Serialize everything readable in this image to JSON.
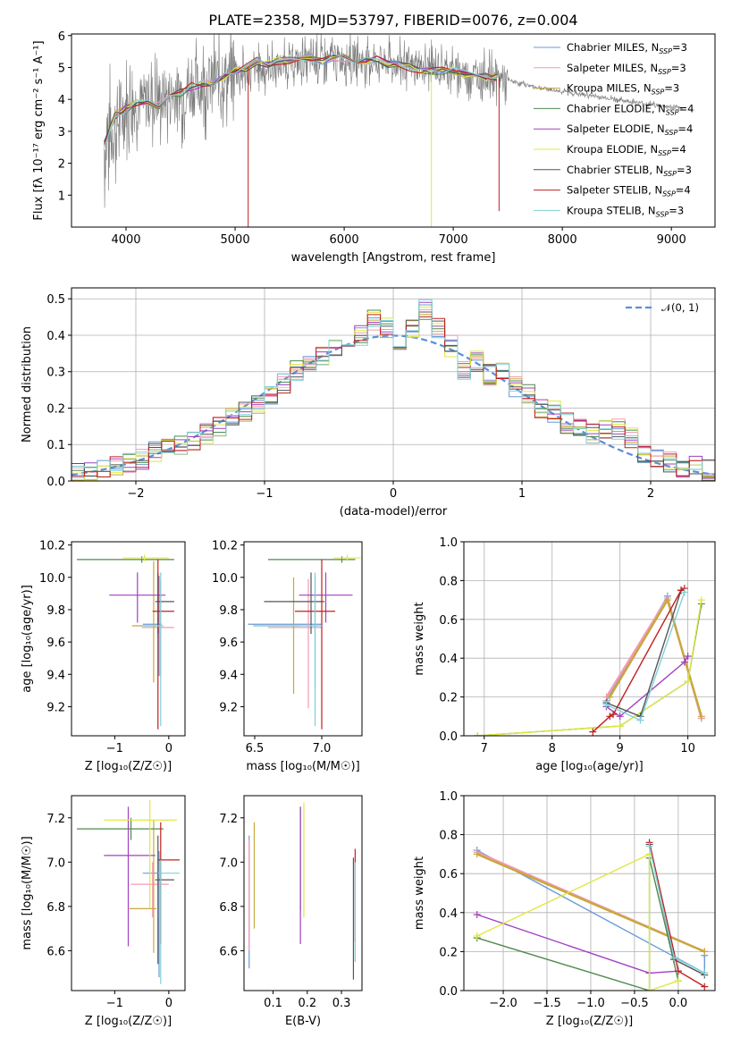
{
  "title": "PLATE=2358, MJD=53797, FIBERID=0076, z=0.004",
  "colors": [
    "#6a9bd8",
    "#f59ab5",
    "#c8a83c",
    "#4f8a4f",
    "#a040c0",
    "#e0e840",
    "#555555",
    "#c02020",
    "#80d0d8"
  ],
  "legend_entries": [
    "Chabrier MILES, N_SSP=3",
    "Salpeter MILES, N_SSP=3",
    "Kroupa MILES, N_SSP=3",
    "Chabrier ELODIE, N_SSP=4",
    "Salpeter ELODIE, N_SSP=4",
    "Kroupa ELODIE, N_SSP=4",
    "Chabrier STELIB, N_SSP=3",
    "Salpeter STELIB, N_SSP=4",
    "Kroupa STELIB, N_SSP=3"
  ],
  "legend_mathlabel": "𝒩(0, 1)",
  "chart_data": [
    {
      "id": "spectrum",
      "type": "line",
      "xlabel": "wavelength [Angstrom, rest frame]",
      "ylabel": "Flux [fλ 10⁻¹⁷ erg cm⁻² s⁻¹ A⁻¹]",
      "xlim": [
        3500,
        9400
      ],
      "ylim": [
        0,
        6.05
      ],
      "xticks": [
        4000,
        5000,
        6000,
        7000,
        8000,
        9000
      ],
      "yticks": [
        1,
        2,
        3,
        4,
        5,
        6
      ],
      "grid": false,
      "legend": "top-right",
      "data_x": [
        3800,
        3900,
        4000,
        4100,
        4200,
        4300,
        4400,
        4500,
        4600,
        4700,
        4800,
        4900,
        5000,
        5100,
        5200,
        5300,
        5400,
        5500,
        5600,
        5700,
        5800,
        5900,
        6000,
        6100,
        6200,
        6300,
        6400,
        6500,
        6600,
        6700,
        6800,
        6900,
        7000,
        7100,
        7200,
        7300,
        7400
      ],
      "data_y": [
        2.6,
        3.5,
        3.7,
        3.9,
        3.9,
        3.8,
        4.2,
        4.2,
        4.4,
        4.5,
        4.5,
        4.7,
        4.9,
        5.0,
        5.2,
        5.1,
        5.2,
        5.2,
        5.3,
        5.3,
        5.2,
        5.3,
        5.3,
        5.2,
        5.2,
        5.3,
        5.1,
        5.1,
        5.0,
        4.9,
        4.9,
        4.9,
        4.9,
        4.8,
        4.7,
        4.7,
        4.7
      ],
      "obs_x": [
        3800,
        4000,
        4500,
        5000,
        5500,
        6000,
        6500,
        7000,
        7500,
        7800,
        8000,
        8500,
        9000,
        9100
      ],
      "obs_y": [
        2.5,
        3.8,
        4.2,
        4.8,
        5.1,
        5.3,
        5.1,
        4.9,
        4.6,
        4.35,
        4.25,
        4.0,
        3.75,
        3.7
      ]
    },
    {
      "id": "residuals",
      "type": "line",
      "xlabel": "(data-model)/error",
      "ylabel": "Normed distribution",
      "xlim": [
        -2.5,
        2.5
      ],
      "ylim": [
        0,
        0.53
      ],
      "xticks": [
        -2,
        -1,
        0,
        1,
        2
      ],
      "yticks": [
        0.0,
        0.1,
        0.2,
        0.3,
        0.4,
        0.5
      ],
      "grid": true,
      "legend": "top-right",
      "bins": [
        -2.5,
        -2.4,
        -2.3,
        -2.2,
        -2.1,
        -2.0,
        -1.9,
        -1.8,
        -1.7,
        -1.6,
        -1.5,
        -1.4,
        -1.3,
        -1.2,
        -1.1,
        -1.0,
        -0.9,
        -0.8,
        -0.7,
        -0.6,
        -0.5,
        -0.4,
        -0.3,
        -0.2,
        -0.1,
        0.0,
        0.1,
        0.2,
        0.3,
        0.4,
        0.5,
        0.6,
        0.7,
        0.8,
        0.9,
        1.0,
        1.1,
        1.2,
        1.3,
        1.4,
        1.5,
        1.6,
        1.7,
        1.8,
        1.9,
        2.0,
        2.1,
        2.2,
        2.3,
        2.4
      ],
      "hist": [
        0.02,
        0.02,
        0.03,
        0.04,
        0.05,
        0.06,
        0.08,
        0.09,
        0.1,
        0.11,
        0.13,
        0.15,
        0.17,
        0.19,
        0.21,
        0.24,
        0.27,
        0.3,
        0.32,
        0.34,
        0.36,
        0.38,
        0.4,
        0.44,
        0.42,
        0.37,
        0.42,
        0.47,
        0.42,
        0.37,
        0.3,
        0.33,
        0.29,
        0.3,
        0.26,
        0.24,
        0.2,
        0.19,
        0.16,
        0.15,
        0.13,
        0.14,
        0.14,
        0.12,
        0.07,
        0.06,
        0.05,
        0.04,
        0.04,
        0.03
      ]
    },
    {
      "id": "z-age",
      "type": "scatter",
      "xlabel": "Z [log₁₀(Z/Z☉)]",
      "ylabel": "age  [log₁₀(age/yr)]",
      "xlim": [
        -1.8,
        0.3
      ],
      "ylim": [
        9.02,
        10.22
      ],
      "xticks": [
        -1,
        0
      ],
      "yticks": [
        9.2,
        9.4,
        9.6,
        9.8,
        10.0,
        10.2
      ],
      "points": [
        {
          "x": -0.18,
          "y": 9.71,
          "xerr": [
            0.3,
            0.05
          ],
          "yerr": [
            0.32,
            0.3
          ]
        },
        {
          "x": -0.15,
          "y": 9.69,
          "xerr": [
            0.35,
            0.25
          ],
          "yerr": [
            0.3,
            0.29
          ]
        },
        {
          "x": -0.28,
          "y": 9.7,
          "xerr": [
            0.4,
            0.05
          ],
          "yerr": [
            0.35,
            0.4
          ]
        },
        {
          "x": -0.5,
          "y": 10.11,
          "xerr": [
            1.2,
            0.6
          ],
          "yerr": [
            0.02,
            0.02
          ]
        },
        {
          "x": -0.58,
          "y": 9.89,
          "xerr": [
            0.52,
            0.52
          ],
          "yerr": [
            0.17,
            0.14
          ]
        },
        {
          "x": -0.45,
          "y": 10.12,
          "xerr": [
            0.4,
            0.45
          ],
          "yerr": [
            0.02,
            0.02
          ]
        },
        {
          "x": -0.2,
          "y": 9.85,
          "xerr": [
            0.05,
            0.3
          ],
          "yerr": [
            0.2,
            0.18
          ]
        },
        {
          "x": -0.2,
          "y": 9.79,
          "xerr": [
            0.1,
            0.3
          ],
          "yerr": [
            0.73,
            0.32
          ]
        },
        {
          "x": -0.15,
          "y": 9.7,
          "xerr": [
            0.35,
            0.05
          ],
          "yerr": [
            0.62,
            0.33
          ]
        }
      ]
    },
    {
      "id": "mass-age",
      "type": "scatter",
      "xlabel": "mass [log₁₀(M/M☉)]",
      "ylabel": "",
      "xlim": [
        6.42,
        7.3
      ],
      "ylim": [
        9.02,
        10.22
      ],
      "xticks": [
        6.5,
        7.0
      ],
      "yticks": [
        9.2,
        9.4,
        9.6,
        9.8,
        10.0,
        10.2
      ],
      "points": [
        {
          "x": 6.95,
          "y": 9.71,
          "xerr": [
            0.5,
            0.05
          ],
          "yerr": [
            0.4,
            0.3
          ]
        },
        {
          "x": 6.9,
          "y": 9.69,
          "xerr": [
            0.3,
            0.1
          ],
          "yerr": [
            0.5,
            0.3
          ]
        },
        {
          "x": 6.79,
          "y": 9.7,
          "xerr": [
            0.3,
            0.05
          ],
          "yerr": [
            0.42,
            0.3
          ]
        },
        {
          "x": 7.15,
          "y": 10.11,
          "xerr": [
            0.55,
            0.1
          ],
          "yerr": [
            0.02,
            0.02
          ]
        },
        {
          "x": 7.03,
          "y": 9.89,
          "xerr": [
            0.2,
            0.2
          ],
          "yerr": [
            0.17,
            0.14
          ]
        },
        {
          "x": 7.19,
          "y": 10.12,
          "xerr": [
            0.1,
            0.1
          ],
          "yerr": [
            0.02,
            0.02
          ]
        },
        {
          "x": 6.92,
          "y": 9.85,
          "xerr": [
            0.35,
            0.1
          ],
          "yerr": [
            0.2,
            0.18
          ]
        },
        {
          "x": 7.0,
          "y": 9.79,
          "xerr": [
            0.2,
            0.1
          ],
          "yerr": [
            0.73,
            0.32
          ]
        },
        {
          "x": 6.95,
          "y": 9.7,
          "xerr": [
            0.45,
            0.05
          ],
          "yerr": [
            0.62,
            0.33
          ]
        }
      ]
    },
    {
      "id": "age-weight",
      "type": "line",
      "xlabel": "age  [log₁₀(age/yr)]",
      "ylabel": "mass weight",
      "xlim": [
        6.7,
        10.4
      ],
      "ylim": [
        0,
        1.0
      ],
      "xticks": [
        7,
        8,
        9,
        10
      ],
      "yticks": [
        0.0,
        0.2,
        0.4,
        0.6,
        0.8,
        1.0
      ],
      "grid": true,
      "series": [
        {
          "x": [
            8.8,
            9.7,
            10.2
          ],
          "y": [
            0.18,
            0.72,
            0.09
          ]
        },
        {
          "x": [
            8.8,
            9.7,
            10.2
          ],
          "y": [
            0.2,
            0.71,
            0.09
          ]
        },
        {
          "x": [
            8.85,
            9.7,
            10.2
          ],
          "y": [
            0.2,
            0.7,
            0.1
          ]
        },
        {
          "x": [
            6.9,
            9.0,
            10.0,
            10.2
          ],
          "y": [
            0.0,
            0.05,
            0.28,
            0.68
          ]
        },
        {
          "x": [
            8.8,
            9.0,
            9.95,
            10.0
          ],
          "y": [
            0.15,
            0.1,
            0.38,
            0.41
          ]
        },
        {
          "x": [
            6.9,
            9.0,
            10.0,
            10.2
          ],
          "y": [
            0.0,
            0.05,
            0.28,
            0.7
          ]
        },
        {
          "x": [
            8.8,
            9.3,
            9.9
          ],
          "y": [
            0.17,
            0.1,
            0.75
          ]
        },
        {
          "x": [
            8.6,
            8.85,
            8.9,
            9.9,
            9.95
          ],
          "y": [
            0.02,
            0.1,
            0.11,
            0.75,
            0.76
          ]
        },
        {
          "x": [
            8.8,
            9.3,
            9.95
          ],
          "y": [
            0.16,
            0.08,
            0.74
          ]
        }
      ]
    },
    {
      "id": "z-mass",
      "type": "scatter",
      "xlabel": "Z [log₁₀(Z/Z☉)]",
      "ylabel": "mass [log₁₀(M/M☉)]",
      "xlim": [
        -1.8,
        0.3
      ],
      "ylim": [
        6.42,
        7.3
      ],
      "xticks": [
        -1,
        0
      ],
      "yticks": [
        6.6,
        6.8,
        7.0,
        7.2
      ],
      "points": [
        {
          "x": -0.18,
          "y": 6.95,
          "xerr": [
            0.3,
            0.05
          ],
          "yerr": [
            0.47,
            0.1
          ]
        },
        {
          "x": -0.3,
          "y": 6.9,
          "xerr": [
            0.4,
            0.3
          ],
          "yerr": [
            0.15,
            0.1
          ]
        },
        {
          "x": -0.28,
          "y": 6.79,
          "xerr": [
            0.45,
            0.05
          ],
          "yerr": [
            0.2,
            0.4
          ]
        },
        {
          "x": -0.7,
          "y": 7.15,
          "xerr": [
            1.0,
            0.6
          ],
          "yerr": [
            0.05,
            0.05
          ]
        },
        {
          "x": -0.75,
          "y": 7.03,
          "xerr": [
            0.45,
            0.5
          ],
          "yerr": [
            0.41,
            0.22
          ]
        },
        {
          "x": -0.35,
          "y": 7.19,
          "xerr": [
            0.85,
            0.5
          ],
          "yerr": [
            0.4,
            0.09
          ]
        },
        {
          "x": -0.2,
          "y": 6.92,
          "xerr": [
            0.05,
            0.3
          ],
          "yerr": [
            0.38,
            0.2
          ]
        },
        {
          "x": -0.15,
          "y": 7.01,
          "xerr": [
            0.05,
            0.35
          ],
          "yerr": [
            0.38,
            0.17
          ]
        },
        {
          "x": -0.15,
          "y": 6.95,
          "xerr": [
            0.05,
            0.35
          ],
          "yerr": [
            0.5,
            0.06
          ]
        }
      ]
    },
    {
      "id": "ebv-mass",
      "type": "scatter",
      "xlabel": "E(B-V)",
      "ylabel": "",
      "xlim": [
        0.015,
        0.36
      ],
      "ylim": [
        6.42,
        7.3
      ],
      "xticks": [
        0.1,
        0.2,
        0.3
      ],
      "yticks": [
        6.6,
        6.8,
        7.0,
        7.2
      ],
      "points": [
        {
          "x": 0.03,
          "y": 6.95,
          "xerr": [
            0,
            0
          ],
          "yerr": [
            0.43,
            0.17
          ]
        },
        {
          "x": 0.03,
          "y": 6.9,
          "xerr": [
            0,
            0
          ],
          "yerr": [
            0.3,
            0.2
          ]
        },
        {
          "x": 0.045,
          "y": 6.95,
          "xerr": [
            0,
            0
          ],
          "yerr": [
            0.25,
            0.23
          ]
        },
        {
          "x": 0.18,
          "y": 7.15,
          "xerr": [
            0,
            0
          ],
          "yerr": [
            0.37,
            0.1
          ]
        },
        {
          "x": 0.18,
          "y": 6.95,
          "xerr": [
            0,
            0
          ],
          "yerr": [
            0.32,
            0.3
          ]
        },
        {
          "x": 0.19,
          "y": 7.15,
          "xerr": [
            0,
            0
          ],
          "yerr": [
            0.4,
            0.12
          ]
        },
        {
          "x": 0.335,
          "y": 6.8,
          "xerr": [
            0,
            0
          ],
          "yerr": [
            0.33,
            0.22
          ]
        },
        {
          "x": 0.34,
          "y": 6.8,
          "xerr": [
            0,
            0
          ],
          "yerr": [
            0.16,
            0.26
          ]
        },
        {
          "x": 0.34,
          "y": 6.75,
          "xerr": [
            0,
            0
          ],
          "yerr": [
            0.2,
            0.25
          ]
        }
      ]
    },
    {
      "id": "z-weight",
      "type": "line",
      "xlabel": "Z [log₁₀(Z/Z☉)]",
      "ylabel": "mass weight",
      "xlim": [
        -2.45,
        0.42
      ],
      "ylim": [
        0,
        1.0
      ],
      "xticks": [
        -2.0,
        -1.5,
        -1.0,
        -0.5,
        0.0
      ],
      "yticks": [
        0.0,
        0.2,
        0.4,
        0.6,
        0.8,
        1.0
      ],
      "grid": true,
      "series": [
        {
          "x": [
            -2.3,
            0.3,
            0.3
          ],
          "y": [
            0.72,
            0.09,
            0.18
          ]
        },
        {
          "x": [
            -2.3,
            0.3
          ],
          "y": [
            0.71,
            0.2
          ]
        },
        {
          "x": [
            -2.3,
            0.3
          ],
          "y": [
            0.7,
            0.2
          ]
        },
        {
          "x": [
            -2.3,
            -0.33,
            -0.33,
            0.0
          ],
          "y": [
            0.27,
            0.0,
            0.68,
            0.05
          ]
        },
        {
          "x": [
            -2.3,
            -0.33,
            0.0
          ],
          "y": [
            0.39,
            0.09,
            0.1
          ]
        },
        {
          "x": [
            -2.3,
            -0.33,
            -0.33,
            0.0
          ],
          "y": [
            0.28,
            0.7,
            0.0,
            0.05
          ]
        },
        {
          "x": [
            -0.33,
            -0.05,
            0.3
          ],
          "y": [
            0.75,
            0.16,
            0.08
          ]
        },
        {
          "x": [
            -0.33,
            0.0,
            0.3
          ],
          "y": [
            0.76,
            0.1,
            0.02
          ]
        },
        {
          "x": [
            -0.33,
            -0.05,
            0.3
          ],
          "y": [
            0.74,
            0.17,
            0.09
          ]
        }
      ]
    }
  ]
}
